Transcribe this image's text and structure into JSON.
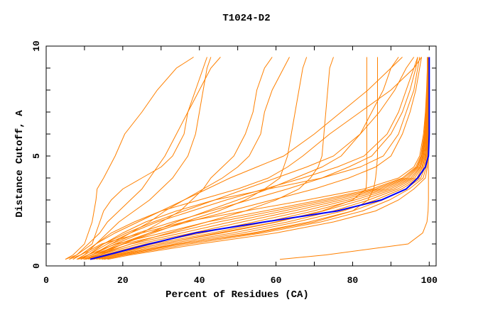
{
  "chart_data": {
    "type": "line",
    "title": "T1024-D2",
    "xlabel": "Percent of Residues (CA)",
    "ylabel": "Distance Cutoff, A",
    "xlim": [
      0,
      101.8
    ],
    "ylim": [
      0,
      10
    ],
    "xticks": [
      0,
      20,
      40,
      60,
      80,
      100
    ],
    "yticks": [
      0,
      5,
      10
    ],
    "grid": false,
    "legend": "none",
    "colors": {
      "models": "#ff8000",
      "highlight": "#0000ff"
    },
    "y_levels": [
      0.3,
      0.5,
      1,
      1.5,
      2,
      2.5,
      3,
      3.5,
      4,
      4.5,
      5,
      6,
      7,
      8,
      9,
      9.5
    ],
    "series": [
      {
        "x": [
          7,
          9,
          14.5,
          25,
          36,
          52,
          68,
          83,
          92,
          96,
          97.5,
          98.5,
          99,
          99.3,
          99.5,
          99.5
        ]
      },
      {
        "x": [
          8.4,
          10.9,
          18.3,
          30.3,
          42,
          57,
          71.6,
          85,
          93,
          96.5,
          97.8,
          98.7,
          99.1,
          99.4,
          99.5,
          99.5
        ]
      },
      {
        "x": [
          9.1,
          11.9,
          20.3,
          33,
          45,
          59.5,
          73.4,
          86,
          93.5,
          96.8,
          98,
          98.8,
          99.2,
          99.5,
          99.6,
          99.6
        ]
      },
      {
        "x": [
          9.7,
          12.9,
          22.2,
          35.5,
          48.2,
          62,
          75.2,
          86.9,
          94.1,
          97,
          98.1,
          98.9,
          99.2,
          99.5,
          99.6,
          99.6
        ]
      },
      {
        "x": [
          10.4,
          13.9,
          24.1,
          38.2,
          51.2,
          64.6,
          77,
          87.8,
          94.6,
          97.3,
          98.3,
          99,
          99.3,
          99.5,
          99.6,
          99.6
        ]
      },
      {
        "x": [
          11,
          14.9,
          26,
          40.8,
          54.3,
          67.3,
          78.8,
          88.8,
          95.2,
          97.6,
          98.4,
          99,
          99.4,
          99.5,
          99.6,
          99.6
        ]
      },
      {
        "x": [
          11.7,
          15.8,
          27.9,
          43.4,
          57.4,
          69.8,
          80.6,
          89.8,
          95.7,
          97.8,
          98.5,
          99.1,
          99.4,
          99.6,
          99.7,
          99.7
        ]
      },
      {
        "x": [
          12.4,
          16.8,
          29.8,
          46,
          60.4,
          72.4,
          82.4,
          90.8,
          96.2,
          98.1,
          98.7,
          99.2,
          99.5,
          99.6,
          99.7,
          99.7
        ]
      },
      {
        "x": [
          13.1,
          17.8,
          31.7,
          48.7,
          63,
          75,
          84.2,
          91.8,
          96.8,
          98.3,
          98.9,
          99.3,
          99.5,
          99.7,
          99.7,
          99.7
        ]
      },
      {
        "x": [
          13.8,
          18.8,
          33.6,
          51.3,
          65.5,
          77.5,
          86,
          92.8,
          97.3,
          98.6,
          99.1,
          99.4,
          99.6,
          99.7,
          99.7,
          99.7
        ]
      },
      {
        "x": [
          14.5,
          19.8,
          35.5,
          53.9,
          68.6,
          80,
          87.8,
          93.8,
          97.8,
          98.9,
          99.2,
          99.5,
          99.6,
          99.7,
          99.8,
          99.8
        ]
      },
      {
        "x": [
          15.1,
          20.7,
          37.5,
          56.5,
          71.7,
          82.6,
          89.6,
          94.8,
          98.4,
          99.2,
          99.4,
          99.6,
          99.7,
          99.8,
          99.8,
          99.8
        ]
      },
      {
        "x": [
          16,
          22,
          40,
          60,
          75,
          86,
          92,
          96,
          99,
          99.5,
          99.6,
          99.7,
          99.8,
          99.8,
          99.8,
          99.8
        ]
      },
      {
        "x": [
          5,
          7,
          10,
          11,
          12,
          12.5,
          13,
          13.3,
          15,
          16.5,
          18,
          20.5,
          25,
          29,
          34,
          38.5
        ]
      },
      {
        "x": [
          6,
          8,
          12,
          13,
          14,
          15,
          17,
          20,
          25,
          30,
          33,
          36,
          37,
          39,
          41,
          42
        ]
      },
      {
        "x": [
          5,
          8,
          11,
          14,
          16,
          19,
          22,
          25,
          27,
          29,
          31,
          34,
          37,
          40,
          43,
          45.5
        ]
      },
      {
        "x": [
          8,
          10,
          13,
          16,
          19,
          23,
          27,
          30,
          33,
          35,
          37,
          39,
          40,
          41,
          42,
          43
        ]
      },
      {
        "x": [
          9,
          12,
          18,
          25,
          30,
          35,
          38,
          41,
          43,
          46,
          49,
          52,
          54,
          55,
          57,
          59
        ]
      },
      {
        "x": [
          9,
          12,
          17,
          22,
          27,
          31,
          36,
          41,
          46,
          50,
          53,
          56,
          57,
          59,
          62,
          63.5
        ]
      },
      {
        "x": [
          10,
          14,
          20,
          28,
          36,
          45,
          52,
          57,
          61,
          62,
          63,
          64,
          65,
          66,
          67,
          68
        ]
      },
      {
        "x": [
          10,
          14,
          22,
          32,
          42,
          52,
          60,
          66,
          69,
          71,
          72,
          72.5,
          73,
          73.5,
          74,
          75
        ]
      },
      {
        "x": [
          10,
          13,
          20,
          27,
          34,
          42,
          50,
          58,
          65,
          72,
          77,
          82,
          85,
          88,
          90,
          92
        ]
      },
      {
        "x": [
          10,
          15,
          30,
          45,
          60,
          72,
          80,
          83.5,
          83.7,
          83.7,
          83.7,
          83.7,
          83.7,
          83.7,
          83.7,
          83.7
        ]
      },
      {
        "x": [
          12,
          18,
          35,
          55,
          70,
          80,
          84,
          85.5,
          86,
          86.3,
          86.5,
          86.5,
          86.5,
          86.5,
          86.5,
          86.5
        ]
      },
      {
        "x": [
          61,
          73,
          94.5,
          98.3,
          99.4,
          99.7,
          99.8,
          99.8,
          99.8,
          99.8,
          99.8,
          99.8,
          99.8,
          99.8,
          99.8,
          99.8
        ]
      },
      {
        "x": [
          7,
          9,
          13,
          18,
          24,
          30,
          36,
          42,
          48,
          55,
          62,
          70,
          77,
          84,
          90,
          93
        ]
      },
      {
        "x": [
          8,
          10,
          15,
          21,
          28,
          36,
          44,
          52,
          60,
          68,
          75,
          82,
          87,
          91,
          94,
          96
        ]
      },
      {
        "x": [
          9,
          12,
          17,
          24,
          33,
          43,
          53,
          63,
          72,
          79,
          85,
          90,
          93,
          95,
          96.5,
          97
        ]
      },
      {
        "x": [
          9,
          11,
          16,
          22,
          29,
          38,
          47,
          57,
          67,
          76,
          83,
          89,
          92,
          94,
          96,
          97
        ]
      },
      {
        "x": [
          10,
          13,
          19,
          27,
          37,
          48,
          59,
          70,
          79,
          86,
          90,
          93,
          95,
          96.5,
          97.5,
          98
        ]
      },
      {
        "x": [
          8,
          11,
          15,
          20,
          26,
          34,
          44,
          58,
          72,
          82,
          88,
          92,
          94,
          96,
          97,
          97.5
        ]
      },
      {
        "x": [
          6,
          9,
          13,
          17,
          23,
          30,
          40,
          50,
          58,
          63,
          67,
          74,
          82,
          90,
          96,
          98
        ]
      }
    ],
    "highlight_series": {
      "x": [
        11.5,
        16,
        27,
        39,
        57,
        76,
        87.5,
        94,
        97,
        99,
        99.8,
        100,
        100,
        100,
        100,
        100
      ]
    }
  }
}
